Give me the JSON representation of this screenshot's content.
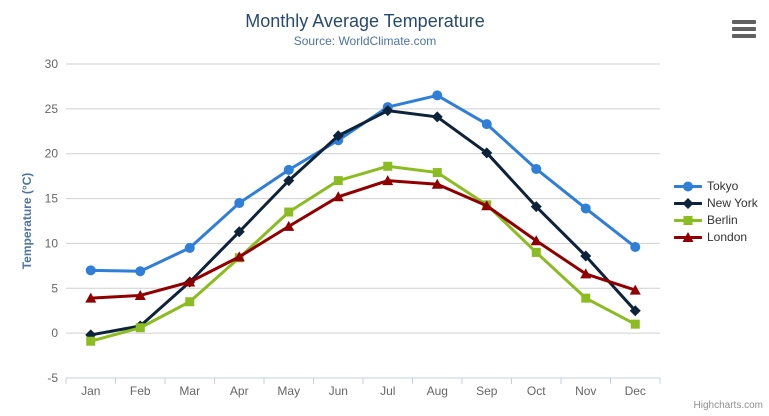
{
  "chart_data": {
    "type": "line",
    "title": "Monthly Average Temperature",
    "subtitle": "Source: WorldClimate.com",
    "xlabel": "",
    "ylabel": "Temperature (°C)",
    "categories": [
      "Jan",
      "Feb",
      "Mar",
      "Apr",
      "May",
      "Jun",
      "Jul",
      "Aug",
      "Sep",
      "Oct",
      "Nov",
      "Dec"
    ],
    "ylim": [
      -5,
      30
    ],
    "ytick_step": 5,
    "grid": "horizontal",
    "legend_position": "right",
    "series": [
      {
        "name": "Tokyo",
        "color": "#2f7ed8",
        "marker": "circle",
        "values": [
          7.0,
          6.9,
          9.5,
          14.5,
          18.2,
          21.5,
          25.2,
          26.5,
          23.3,
          18.3,
          13.9,
          9.6
        ]
      },
      {
        "name": "New York",
        "color": "#0d233a",
        "marker": "diamond",
        "values": [
          -0.2,
          0.8,
          5.7,
          11.3,
          17.0,
          22.0,
          24.8,
          24.1,
          20.1,
          14.1,
          8.6,
          2.5
        ]
      },
      {
        "name": "Berlin",
        "color": "#8bbc21",
        "marker": "square",
        "values": [
          -0.9,
          0.6,
          3.5,
          8.4,
          13.5,
          17.0,
          18.6,
          17.9,
          14.3,
          9.0,
          3.9,
          1.0
        ]
      },
      {
        "name": "London",
        "color": "#910000",
        "marker": "triangle",
        "values": [
          3.9,
          4.2,
          5.7,
          8.5,
          11.9,
          15.2,
          17.0,
          16.6,
          14.2,
          10.3,
          6.6,
          4.8
        ]
      }
    ],
    "colors": {
      "grid_line": "#d0d0d0",
      "axis_line": "#c0d0e0",
      "tick": "#c0d0e0",
      "axis_label": "#666666",
      "title": "#274b6d",
      "subtitle": "#4d759e",
      "y_axis_title": "#4d759e",
      "legend_text": "#333333",
      "credits_text": "#909090",
      "menu_icon": "#606060"
    }
  },
  "controls": {
    "context_menu_icon": "hamburger-icon"
  },
  "credits": {
    "label": "Highcharts.com"
  }
}
